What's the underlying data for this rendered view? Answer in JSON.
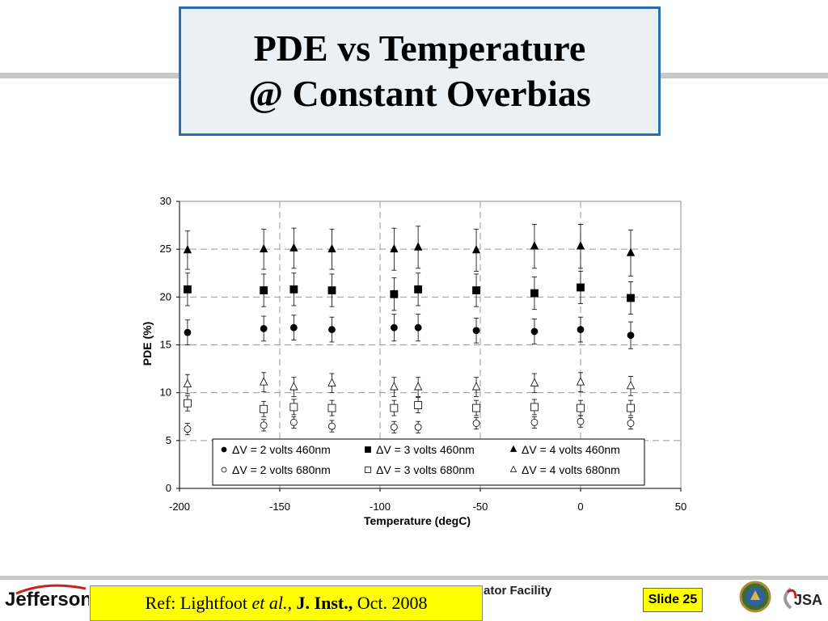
{
  "title": {
    "line1": "PDE vs Temperature",
    "line2": "@ Constant Overbias"
  },
  "footer": {
    "logo_text": "Jefferson",
    "facility_text": "ator Facility",
    "ref_prefix": "Ref: Lightfoot ",
    "ref_em": "et al.,",
    "ref_bold": "J. Inst.,",
    "ref_suffix": "Oct. 2008",
    "slide_label": "Slide 25",
    "jsa_text": "JSA"
  },
  "colors": {
    "title_border": "#2a6db2",
    "title_fill": "#eaf0f4",
    "highlight": "#ffff00"
  },
  "chart_data": {
    "type": "scatter",
    "title": "",
    "xlabel": "Temperature (degC)",
    "ylabel": "PDE (%)",
    "xlim": [
      -200,
      50
    ],
    "ylim": [
      0,
      30
    ],
    "xticks": [
      -200,
      -150,
      -100,
      -50,
      0,
      50
    ],
    "yticks": [
      0,
      5,
      10,
      15,
      20,
      25,
      30
    ],
    "grid": "dashed",
    "legend_position": "bottom-center",
    "series": [
      {
        "name": "ΔV = 2 volts 460nm",
        "marker": "circle",
        "filled": true,
        "x": [
          -196,
          -158,
          -143,
          -124,
          -93,
          -81,
          -52,
          -23,
          0,
          25
        ],
        "y": [
          16.3,
          16.7,
          16.8,
          16.6,
          16.8,
          16.8,
          16.5,
          16.4,
          16.6,
          16.0
        ],
        "err": [
          1.3,
          1.3,
          1.3,
          1.3,
          1.4,
          1.4,
          1.3,
          1.3,
          1.3,
          1.4
        ]
      },
      {
        "name": "ΔV = 3 volts 460nm",
        "marker": "square",
        "filled": true,
        "x": [
          -196,
          -158,
          -143,
          -124,
          -93,
          -81,
          -52,
          -23,
          0,
          25
        ],
        "y": [
          20.8,
          20.7,
          20.8,
          20.7,
          20.3,
          20.8,
          20.7,
          20.4,
          21.0,
          19.9
        ],
        "err": [
          1.7,
          1.7,
          1.7,
          1.7,
          1.7,
          1.7,
          1.7,
          1.7,
          1.7,
          1.7
        ]
      },
      {
        "name": "ΔV = 4 volts 460nm",
        "marker": "triangle",
        "filled": true,
        "x": [
          -196,
          -158,
          -143,
          -124,
          -93,
          -81,
          -52,
          -23,
          0,
          25
        ],
        "y": [
          24.9,
          25.0,
          25.1,
          25.0,
          25.0,
          25.2,
          24.9,
          25.3,
          25.3,
          24.6
        ],
        "err": [
          2.0,
          2.1,
          2.1,
          2.1,
          2.2,
          2.2,
          2.2,
          2.3,
          2.3,
          2.4
        ]
      },
      {
        "name": "ΔV = 2 volts 680nm",
        "marker": "circle",
        "filled": false,
        "x": [
          -196,
          -158,
          -143,
          -124,
          -93,
          -81,
          -52,
          -23,
          0,
          25
        ],
        "y": [
          6.2,
          6.6,
          6.9,
          6.5,
          6.4,
          6.4,
          6.8,
          6.9,
          7.0,
          6.8
        ],
        "err": [
          0.6,
          0.6,
          0.6,
          0.6,
          0.6,
          0.6,
          0.6,
          0.6,
          0.6,
          0.6
        ]
      },
      {
        "name": "ΔV = 3 volts 680nm",
        "marker": "square",
        "filled": false,
        "x": [
          -196,
          -158,
          -143,
          -124,
          -93,
          -81,
          -52,
          -23,
          0,
          25
        ],
        "y": [
          8.9,
          8.3,
          8.5,
          8.4,
          8.4,
          8.7,
          8.4,
          8.5,
          8.4,
          8.4
        ],
        "err": [
          0.8,
          0.8,
          0.8,
          0.8,
          0.8,
          0.8,
          0.8,
          0.8,
          0.8,
          0.8
        ]
      },
      {
        "name": "ΔV = 4 volts 680nm",
        "marker": "triangle",
        "filled": false,
        "x": [
          -196,
          -158,
          -143,
          -124,
          -93,
          -81,
          -52,
          -23,
          0,
          25
        ],
        "y": [
          10.9,
          11.1,
          10.6,
          11.0,
          10.6,
          10.6,
          10.6,
          11.0,
          11.1,
          10.7
        ],
        "err": [
          1.0,
          1.0,
          1.0,
          1.0,
          1.0,
          1.0,
          1.0,
          1.0,
          1.0,
          1.0
        ]
      }
    ]
  }
}
